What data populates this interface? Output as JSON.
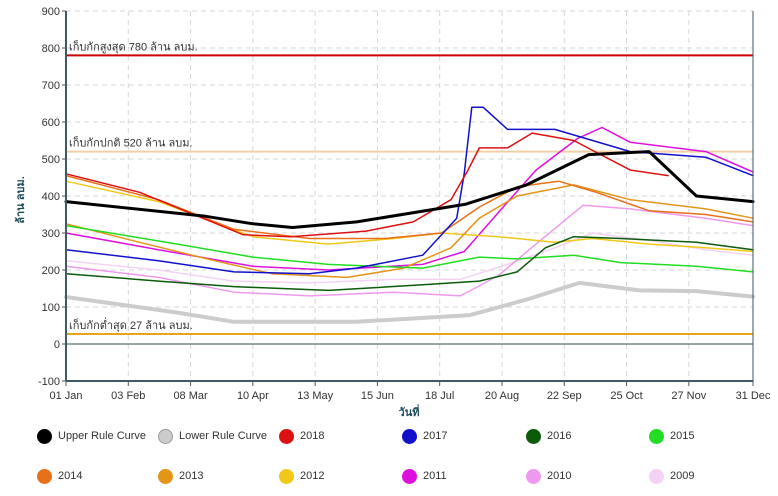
{
  "chart_data": {
    "type": "line",
    "xlabel": "วันที่",
    "ylabel": "ล้าน ลบม.",
    "ylim": [
      -100,
      900
    ],
    "y_ticks": [
      "900",
      "800",
      "700",
      "600",
      "500",
      "400",
      "300",
      "200",
      "100",
      "0",
      "-100"
    ],
    "x_ticks": [
      "01 Jan",
      "03 Feb",
      "08 Mar",
      "10 Apr",
      "13 May",
      "15 Jun",
      "18 Jul",
      "20 Aug",
      "22 Sep",
      "25 Oct",
      "27 Nov",
      "31 Dec"
    ],
    "x_tick_days": [
      1,
      34,
      67,
      100,
      133,
      166,
      199,
      232,
      265,
      298,
      331,
      365
    ],
    "xlim": [
      1,
      365
    ],
    "grid": true,
    "legend_position": "bottom",
    "reference_lines": [
      {
        "value": 780,
        "label": "เก็บกักสูงสุด 780 ล้าน ลบม.",
        "color": "#cc0000"
      },
      {
        "value": 520,
        "label": "เก็บกักปกติ 520 ล้าน ลบม.",
        "color": "#f3cfa5"
      },
      {
        "value": 27,
        "label": "เก็บกักต่ำสุด 27 ล้าน ลบม.",
        "color": "#e8a317"
      }
    ],
    "series": [
      {
        "name": "Upper Rule Curve",
        "color": "#000000",
        "width": 3,
        "points": [
          [
            1,
            385
          ],
          [
            75,
            345
          ],
          [
            100,
            325
          ],
          [
            121,
            315
          ],
          [
            155,
            330
          ],
          [
            213,
            378
          ],
          [
            245,
            430
          ],
          [
            278,
            512
          ],
          [
            310,
            520
          ],
          [
            335,
            400
          ],
          [
            365,
            385
          ]
        ]
      },
      {
        "name": "Lower Rule Curve",
        "color": "#cccccc",
        "width": 4,
        "points": [
          [
            1,
            127
          ],
          [
            60,
            85
          ],
          [
            90,
            60
          ],
          [
            155,
            60
          ],
          [
            215,
            78
          ],
          [
            245,
            120
          ],
          [
            273,
            165
          ],
          [
            305,
            145
          ],
          [
            335,
            143
          ],
          [
            365,
            128
          ]
        ]
      },
      {
        "name": "2018",
        "color": "#dd1111",
        "width": 1.5,
        "points": [
          [
            1,
            460
          ],
          [
            40,
            410
          ],
          [
            95,
            295
          ],
          [
            120,
            290
          ],
          [
            160,
            305
          ],
          [
            185,
            330
          ],
          [
            205,
            390
          ],
          [
            214,
            470
          ],
          [
            220,
            530
          ],
          [
            235,
            530
          ],
          [
            248,
            570
          ],
          [
            270,
            550
          ],
          [
            300,
            470
          ],
          [
            320,
            455
          ]
        ]
      },
      {
        "name": "2017",
        "color": "#1111cc",
        "width": 1.5,
        "points": [
          [
            1,
            255
          ],
          [
            50,
            225
          ],
          [
            90,
            195
          ],
          [
            130,
            190
          ],
          [
            155,
            205
          ],
          [
            190,
            240
          ],
          [
            208,
            340
          ],
          [
            212,
            460
          ],
          [
            216,
            640
          ],
          [
            222,
            640
          ],
          [
            235,
            580
          ],
          [
            260,
            580
          ],
          [
            300,
            520
          ],
          [
            340,
            505
          ],
          [
            365,
            455
          ]
        ]
      },
      {
        "name": "2016",
        "color": "#0b5b0b",
        "width": 1.5,
        "points": [
          [
            1,
            190
          ],
          [
            50,
            170
          ],
          [
            90,
            155
          ],
          [
            140,
            145
          ],
          [
            190,
            160
          ],
          [
            220,
            170
          ],
          [
            240,
            195
          ],
          [
            255,
            260
          ],
          [
            270,
            290
          ],
          [
            295,
            285
          ],
          [
            335,
            275
          ],
          [
            365,
            255
          ]
        ]
      },
      {
        "name": "2015",
        "color": "#22dd22",
        "width": 1.5,
        "points": [
          [
            1,
            320
          ],
          [
            60,
            270
          ],
          [
            100,
            235
          ],
          [
            140,
            215
          ],
          [
            190,
            205
          ],
          [
            220,
            235
          ],
          [
            240,
            230
          ],
          [
            270,
            240
          ],
          [
            295,
            220
          ],
          [
            335,
            210
          ],
          [
            365,
            195
          ]
        ]
      },
      {
        "name": "2014",
        "color": "#e8701a",
        "width": 1.5,
        "points": [
          [
            1,
            455
          ],
          [
            50,
            390
          ],
          [
            90,
            310
          ],
          [
            130,
            285
          ],
          [
            170,
            285
          ],
          [
            200,
            300
          ],
          [
            220,
            370
          ],
          [
            240,
            425
          ],
          [
            262,
            440
          ],
          [
            282,
            410
          ],
          [
            310,
            360
          ],
          [
            340,
            350
          ],
          [
            365,
            330
          ]
        ]
      },
      {
        "name": "2013",
        "color": "#e39517",
        "width": 1.5,
        "points": [
          [
            1,
            325
          ],
          [
            40,
            275
          ],
          [
            80,
            225
          ],
          [
            110,
            190
          ],
          [
            150,
            180
          ],
          [
            180,
            205
          ],
          [
            205,
            260
          ],
          [
            220,
            340
          ],
          [
            240,
            400
          ],
          [
            270,
            430
          ],
          [
            300,
            390
          ],
          [
            340,
            365
          ],
          [
            365,
            340
          ]
        ]
      },
      {
        "name": "2012",
        "color": "#f2c818",
        "width": 1.5,
        "points": [
          [
            1,
            440
          ],
          [
            50,
            385
          ],
          [
            100,
            290
          ],
          [
            140,
            270
          ],
          [
            175,
            285
          ],
          [
            200,
            300
          ],
          [
            230,
            290
          ],
          [
            260,
            275
          ],
          [
            280,
            285
          ],
          [
            310,
            270
          ],
          [
            340,
            260
          ],
          [
            365,
            250
          ]
        ]
      },
      {
        "name": "2011",
        "color": "#dd11dd",
        "width": 1.5,
        "points": [
          [
            1,
            300
          ],
          [
            50,
            255
          ],
          [
            100,
            210
          ],
          [
            140,
            200
          ],
          [
            190,
            215
          ],
          [
            212,
            250
          ],
          [
            230,
            355
          ],
          [
            250,
            470
          ],
          [
            272,
            555
          ],
          [
            285,
            585
          ],
          [
            300,
            545
          ],
          [
            340,
            520
          ],
          [
            365,
            465
          ]
        ]
      },
      {
        "name": "2010",
        "color": "#ee99ee",
        "width": 1.5,
        "points": [
          [
            1,
            210
          ],
          [
            50,
            180
          ],
          [
            90,
            140
          ],
          [
            130,
            130
          ],
          [
            175,
            140
          ],
          [
            210,
            130
          ],
          [
            230,
            185
          ],
          [
            250,
            270
          ],
          [
            275,
            375
          ],
          [
            300,
            365
          ],
          [
            340,
            340
          ],
          [
            365,
            320
          ]
        ]
      },
      {
        "name": "2009",
        "color": "#f3d2f3",
        "width": 1.5,
        "points": [
          [
            1,
            225
          ],
          [
            50,
            200
          ],
          [
            90,
            170
          ],
          [
            130,
            165
          ],
          [
            175,
            175
          ],
          [
            210,
            175
          ],
          [
            235,
            215
          ],
          [
            260,
            260
          ],
          [
            280,
            300
          ],
          [
            310,
            280
          ],
          [
            340,
            255
          ],
          [
            365,
            240
          ]
        ]
      }
    ]
  }
}
